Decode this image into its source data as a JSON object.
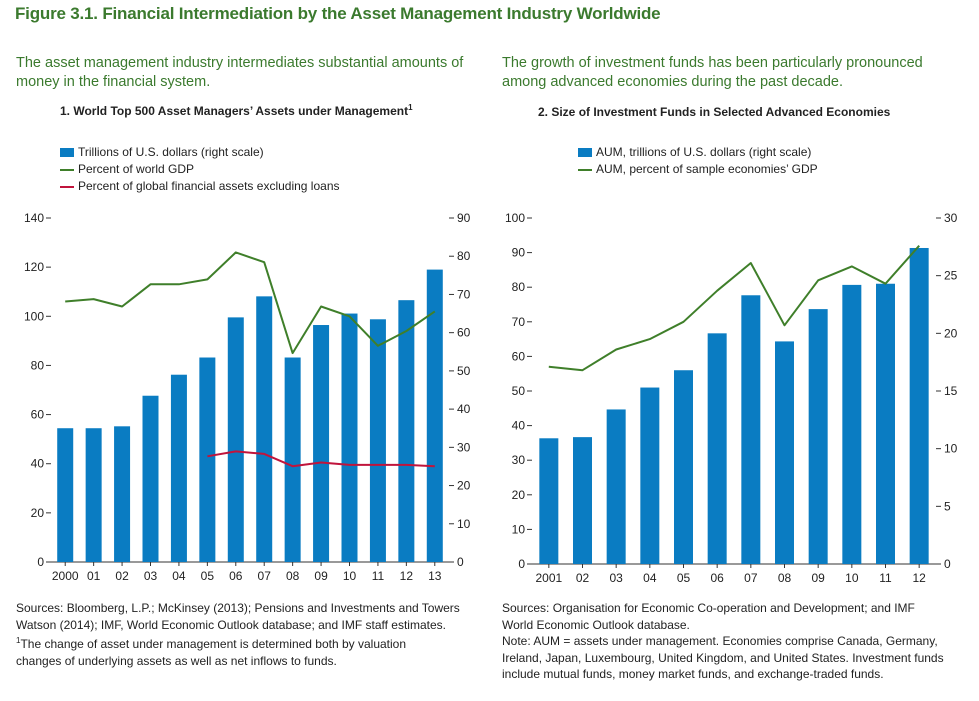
{
  "figure_title": "Figure 3.1. Financial Intermediation by the Asset Management Industry Worldwide",
  "left_subtitle_1": "The asset management industry intermediates substantial amounts of",
  "left_subtitle_2": "money in the financial system.",
  "right_subtitle_1": "The growth of investment funds has been particularly pronounced",
  "right_subtitle_2": "among advanced economies during the past decade.",
  "left_panel_title": "1. World Top 500 Asset Managers’ Assets under Management",
  "left_panel_title_sup": "1",
  "right_panel_title": "2. Size of Investment Funds in Selected Advanced Economies",
  "left_notes": {
    "line1": "Sources: Bloomberg, L.P.; McKinsey (2013); Pensions and Investments and Towers",
    "line2": "Watson (2014); IMF, World Economic Outlook database; and IMF staff estimates.",
    "fn_mark": "1",
    "line3": "The change of asset under management is determined both by valuation",
    "line4": "changes of underlying assets as well as net inflows to funds."
  },
  "right_notes": {
    "line1": "Sources: Organisation for Economic Co-operation and Development; and IMF",
    "line2": "World Economic Outlook database.",
    "line3": "Note: AUM = assets under management. Economies comprise Canada, Germany,",
    "line4": "Ireland, Japan, Luxembourg, United Kingdom, and United States. Investment funds",
    "line5": "include mutual funds, money market funds, and exchange-traded funds."
  },
  "colors": {
    "bar": "#0a7cc2",
    "green": "#3f7f2a",
    "red": "#c0143c",
    "title_green": "#3b7a2e"
  },
  "chart_data": [
    {
      "type": "bar",
      "title": "1. World Top 500 Asset Managers’ Assets under Management",
      "categories": [
        "2000",
        "01",
        "02",
        "03",
        "04",
        "05",
        "06",
        "07",
        "08",
        "09",
        "10",
        "11",
        "12",
        "13"
      ],
      "left_axis": {
        "ylim": [
          0,
          140
        ],
        "ticks": [
          0,
          20,
          40,
          60,
          80,
          100,
          120,
          140
        ]
      },
      "right_axis": {
        "ylim": [
          0,
          90
        ],
        "ticks": [
          0,
          10,
          20,
          30,
          40,
          50,
          60,
          70,
          80,
          90
        ]
      },
      "legend": [
        "Trillions of U.S. dollars (right scale)",
        "Percent of world GDP",
        "Percent of global financial assets excluding loans"
      ],
      "series": [
        {
          "name": "Trillions of U.S. dollars (right scale)",
          "kind": "bar",
          "axis": "right",
          "values": [
            35,
            35,
            35.5,
            43.5,
            49,
            53.5,
            64,
            69.5,
            53.5,
            62,
            65,
            63.5,
            68.5,
            76.5
          ]
        },
        {
          "name": "Percent of world GDP",
          "kind": "line",
          "axis": "left",
          "color": "#3f7f2a",
          "values": [
            106,
            107,
            104,
            113,
            113,
            115,
            126,
            122,
            85,
            104,
            100,
            88,
            94,
            102
          ]
        },
        {
          "name": "Percent of global financial assets excluding loans",
          "kind": "line",
          "axis": "left",
          "color": "#c0143c",
          "values": [
            null,
            null,
            null,
            null,
            null,
            43,
            45,
            44,
            39,
            40.5,
            39.5,
            39.5,
            39.5,
            39
          ]
        }
      ]
    },
    {
      "type": "bar",
      "title": "2. Size of Investment Funds in Selected Advanced Economies",
      "categories": [
        "2001",
        "02",
        "03",
        "04",
        "05",
        "06",
        "07",
        "08",
        "09",
        "10",
        "11",
        "12"
      ],
      "left_axis": {
        "ylim": [
          0,
          100
        ],
        "ticks": [
          0,
          10,
          20,
          30,
          40,
          50,
          60,
          70,
          80,
          90,
          100
        ]
      },
      "right_axis": {
        "ylim": [
          0,
          30
        ],
        "ticks": [
          0,
          5,
          10,
          15,
          20,
          25,
          30
        ]
      },
      "legend": [
        "AUM, trillions of U.S. dollars (right scale)",
        "AUM, percent of sample economies’ GDP"
      ],
      "series": [
        {
          "name": "AUM, trillions of U.S. dollars (right scale)",
          "kind": "bar",
          "axis": "right",
          "values": [
            10.9,
            11,
            13.4,
            15.3,
            16.8,
            20,
            23.3,
            19.3,
            22.1,
            24.2,
            24.3,
            27.4
          ]
        },
        {
          "name": "AUM, percent of sample economies’ GDP",
          "kind": "line",
          "axis": "left",
          "color": "#3f7f2a",
          "values": [
            57,
            56,
            62,
            65,
            70,
            79,
            87,
            69,
            82,
            86,
            81,
            92
          ]
        }
      ]
    }
  ]
}
